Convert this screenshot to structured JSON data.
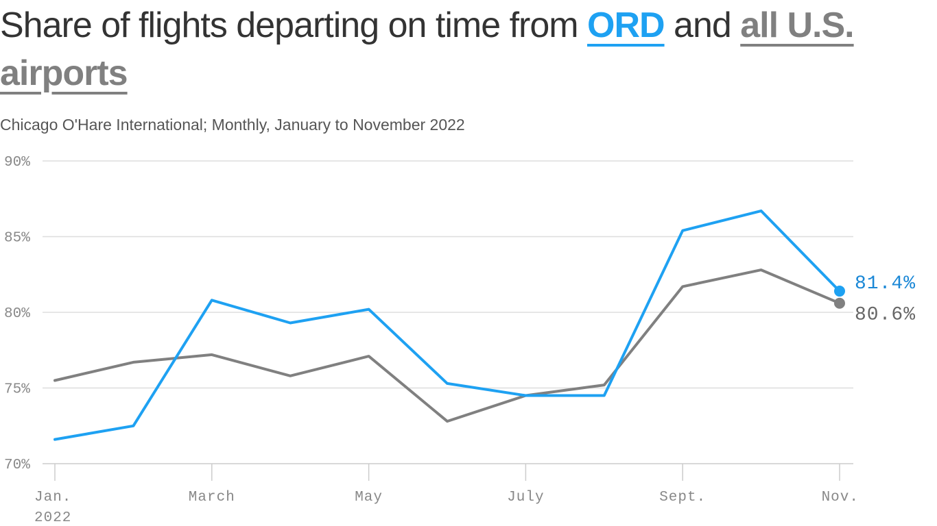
{
  "title": {
    "prefix": "Share of flights departing on time from ",
    "ord_label": "ORD",
    "middle": " and ",
    "all_label": "all U.S. airports"
  },
  "subtitle": "Chicago O'Hare International; Monthly, January to November 2022",
  "colors": {
    "ord": "#1ea1f2",
    "all": "#808080",
    "grid": "#dddddd",
    "tick_text": "#888888",
    "value_label_ord": "#1a87d6",
    "value_label_all": "#666666"
  },
  "chart_data": {
    "type": "line",
    "x": [
      1,
      2,
      3,
      4,
      5,
      6,
      7,
      8,
      9,
      10,
      11
    ],
    "x_ticks": [
      {
        "x": 1,
        "label": "Jan.",
        "sublabel": "2022"
      },
      {
        "x": 3,
        "label": "March"
      },
      {
        "x": 5,
        "label": "May"
      },
      {
        "x": 7,
        "label": "July"
      },
      {
        "x": 9,
        "label": "Sept."
      },
      {
        "x": 11,
        "label": "Nov."
      }
    ],
    "y_ticks": [
      {
        "value": 70,
        "label": "70%"
      },
      {
        "value": 75,
        "label": "75%"
      },
      {
        "value": 80,
        "label": "80%"
      },
      {
        "value": 85,
        "label": "85%"
      },
      {
        "value": 90,
        "label": "90%"
      }
    ],
    "ylim": [
      70,
      90
    ],
    "xlim": [
      1,
      11
    ],
    "grid": true,
    "series": [
      {
        "key": "all",
        "name": "all U.S. airports",
        "values": [
          75.5,
          76.7,
          77.2,
          75.8,
          77.1,
          72.8,
          74.5,
          75.2,
          81.7,
          82.8,
          80.6
        ],
        "end_label": "80.6%"
      },
      {
        "key": "ord",
        "name": "ORD",
        "values": [
          71.6,
          72.5,
          80.8,
          79.3,
          80.2,
          75.3,
          74.5,
          74.5,
          85.4,
          86.7,
          81.4
        ],
        "end_label": "81.4%"
      }
    ]
  }
}
